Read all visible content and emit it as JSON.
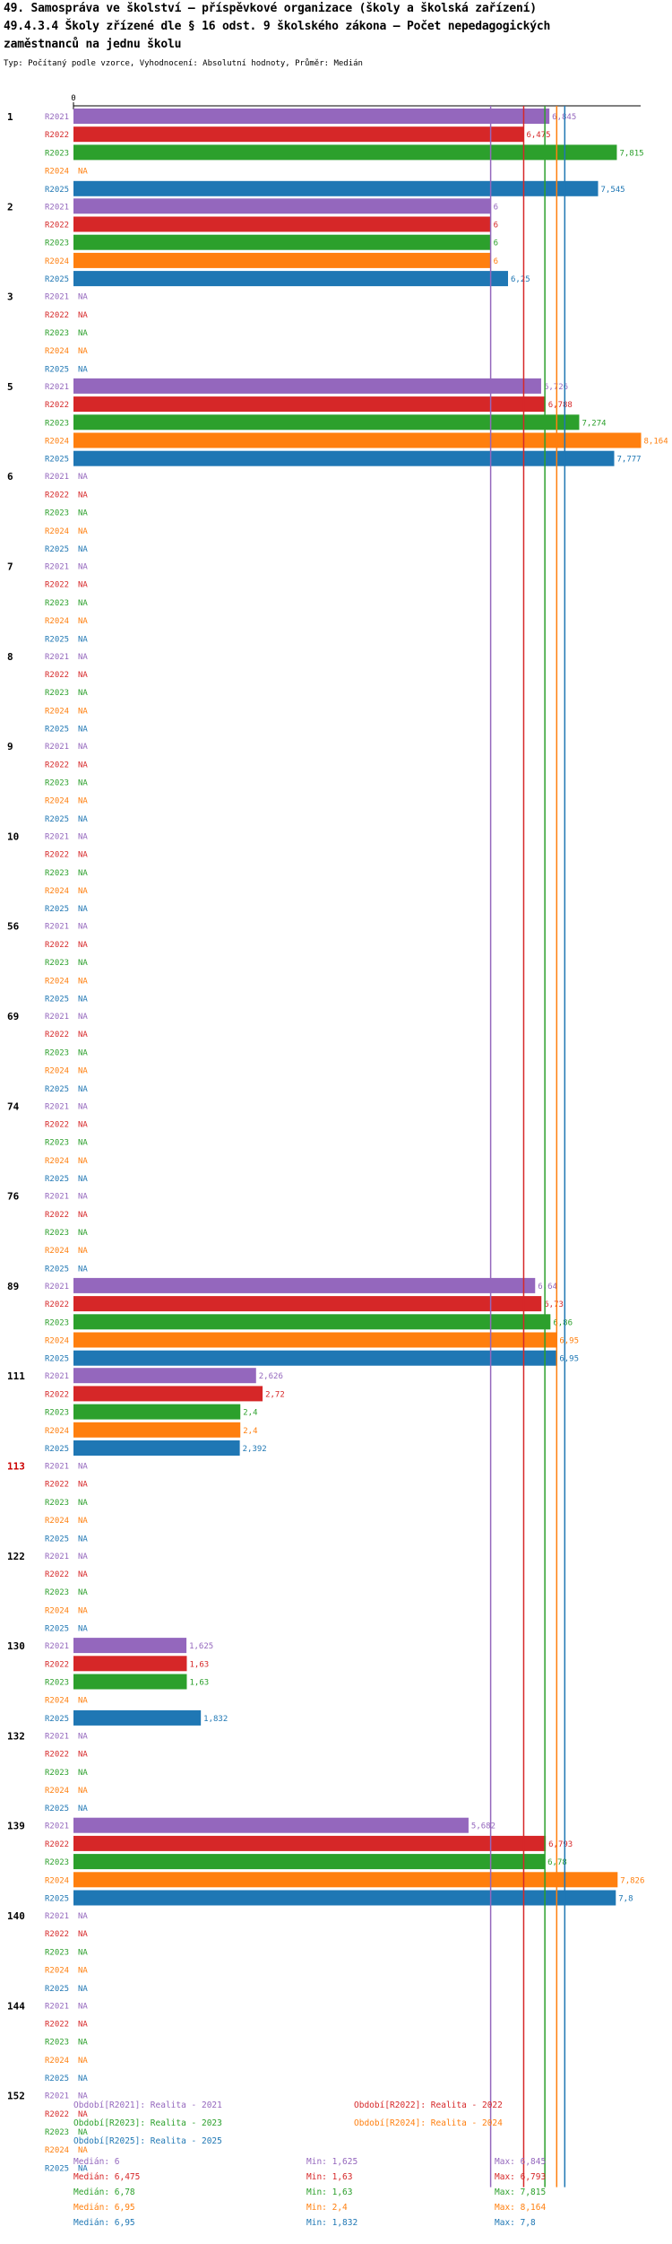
{
  "title_lines": [
    "49. Samospráva ve školství – příspěvkové organizace (školy a školská zařízení)",
    "49.4.3.4 Školy zřízené dle § 16 odst. 9 školského zákona – Počet nepedagogických",
    "zaměstnanců na jednu školu"
  ],
  "subtitle": "Typ: Počítaný podle vzorce, Vyhodnocení: Absolutní hodnoty, Průměr: Medián",
  "colors": {
    "R2021": "#9467bd",
    "R2022": "#d62728",
    "R2023": "#2ca02c",
    "R2024": "#ff7f0e",
    "R2025": "#1f77b4",
    "highlight": "#cc0000",
    "axis": "#000000"
  },
  "chart_data": {
    "type": "bar",
    "orientation": "horizontal",
    "axis_zero_label": "0",
    "x_range": [
      0,
      8.164
    ],
    "series_names": [
      "R2021",
      "R2022",
      "R2023",
      "R2024",
      "R2025"
    ],
    "groups": [
      {
        "label": "1",
        "values": [
          "6,845",
          "6,475",
          "7,815",
          "NA",
          "7,545"
        ]
      },
      {
        "label": "2",
        "values": [
          "6",
          "6",
          "6",
          "6",
          "6,25"
        ]
      },
      {
        "label": "3",
        "values": [
          "NA",
          "NA",
          "NA",
          "NA",
          "NA"
        ]
      },
      {
        "label": "5",
        "values": [
          "6,726",
          "6,788",
          "7,274",
          "8,164",
          "7,777"
        ]
      },
      {
        "label": "6",
        "values": [
          "NA",
          "NA",
          "NA",
          "NA",
          "NA"
        ]
      },
      {
        "label": "7",
        "values": [
          "NA",
          "NA",
          "NA",
          "NA",
          "NA"
        ]
      },
      {
        "label": "8",
        "values": [
          "NA",
          "NA",
          "NA",
          "NA",
          "NA"
        ]
      },
      {
        "label": "9",
        "values": [
          "NA",
          "NA",
          "NA",
          "NA",
          "NA"
        ]
      },
      {
        "label": "10",
        "values": [
          "NA",
          "NA",
          "NA",
          "NA",
          "NA"
        ]
      },
      {
        "label": "56",
        "values": [
          "NA",
          "NA",
          "NA",
          "NA",
          "NA"
        ]
      },
      {
        "label": "69",
        "values": [
          "NA",
          "NA",
          "NA",
          "NA",
          "NA"
        ]
      },
      {
        "label": "74",
        "values": [
          "NA",
          "NA",
          "NA",
          "NA",
          "NA"
        ]
      },
      {
        "label": "76",
        "values": [
          "NA",
          "NA",
          "NA",
          "NA",
          "NA"
        ]
      },
      {
        "label": "89",
        "values": [
          "6,64",
          "6,73",
          "6,86",
          "6,95",
          "6,95"
        ]
      },
      {
        "label": "111",
        "values": [
          "2,626",
          "2,72",
          "2,4",
          "2,4",
          "2,392"
        ]
      },
      {
        "label": "113",
        "highlight": true,
        "values": [
          "NA",
          "NA",
          "NA",
          "NA",
          "NA"
        ]
      },
      {
        "label": "122",
        "values": [
          "NA",
          "NA",
          "NA",
          "NA",
          "NA"
        ]
      },
      {
        "label": "130",
        "values": [
          "1,625",
          "1,63",
          "1,63",
          "NA",
          "1,832"
        ]
      },
      {
        "label": "132",
        "values": [
          "NA",
          "NA",
          "NA",
          "NA",
          "NA"
        ]
      },
      {
        "label": "139",
        "values": [
          "5,682",
          "6,793",
          "6,78",
          "7,826",
          "7,8"
        ]
      },
      {
        "label": "140",
        "values": [
          "NA",
          "NA",
          "NA",
          "NA",
          "NA"
        ]
      },
      {
        "label": "144",
        "values": [
          "NA",
          "NA",
          "NA",
          "NA",
          "NA"
        ]
      },
      {
        "label": "152",
        "values": [
          "NA",
          "NA",
          "NA",
          "NA",
          "NA"
        ]
      }
    ],
    "median_lines": {
      "R2021": 6,
      "R2022": 6.475,
      "R2023": 6.78,
      "R2024": 6.95,
      "R2025": 6.95
    }
  },
  "legend": {
    "entries": [
      {
        "series": "R2021",
        "text": "Období[R2021]: Realita - 2021"
      },
      {
        "series": "R2022",
        "text": "Období[R2022]: Realita - 2022"
      },
      {
        "series": "R2023",
        "text": "Období[R2023]: Realita - 2023"
      },
      {
        "series": "R2024",
        "text": "Období[R2024]: Realita - 2024"
      },
      {
        "series": "R2025",
        "text": "Období[R2025]: Realita - 2025"
      }
    ],
    "stats": [
      {
        "series": "R2021",
        "median": "Medián: 6",
        "min": "Min: 1,625",
        "max": "Max: 6,845"
      },
      {
        "series": "R2022",
        "median": "Medián: 6,475",
        "min": "Min: 1,63",
        "max": "Max: 6,793"
      },
      {
        "series": "R2023",
        "median": "Medián: 6,78",
        "min": "Min: 1,63",
        "max": "Max: 7,815"
      },
      {
        "series": "R2024",
        "median": "Medián: 6,95",
        "min": "Min: 2,4",
        "max": "Max: 8,164"
      },
      {
        "series": "R2025",
        "median": "Medián: 6,95",
        "min": "Min: 1,832",
        "max": "Max: 7,8"
      }
    ]
  }
}
